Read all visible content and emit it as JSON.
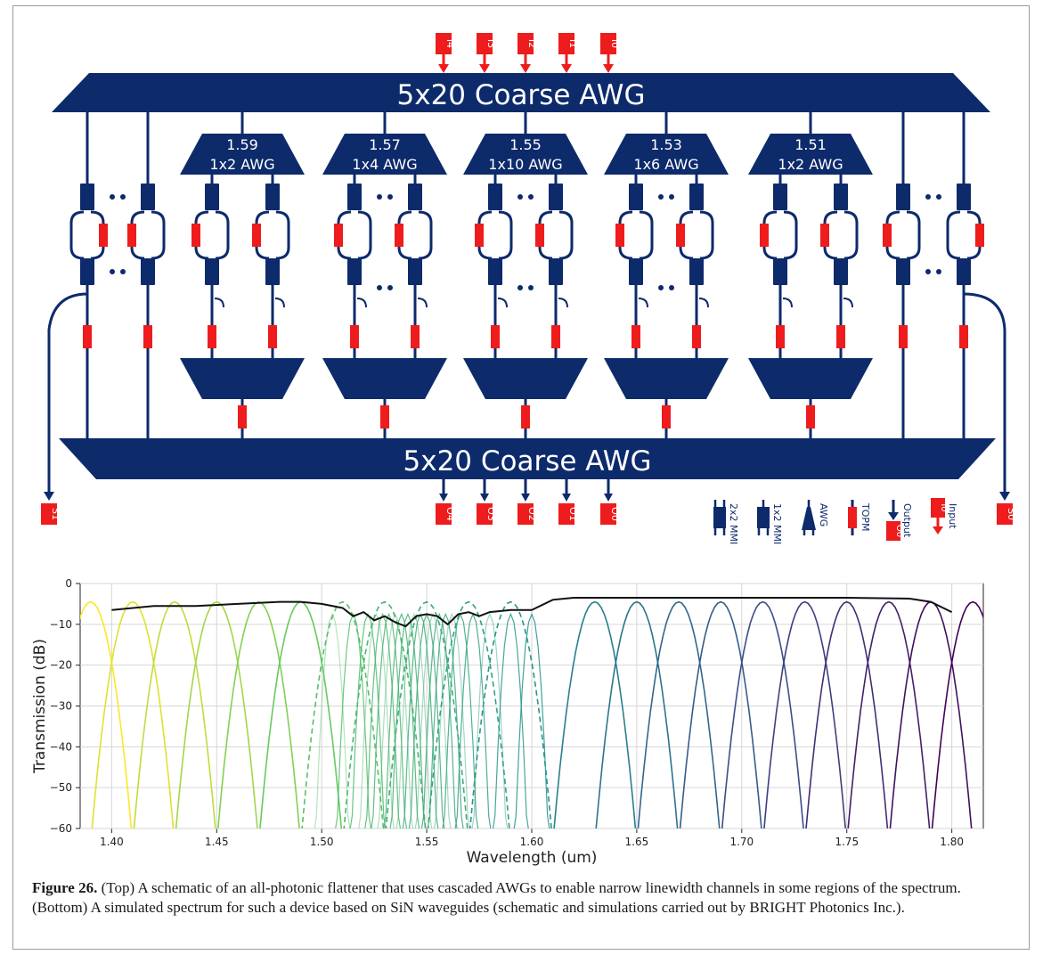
{
  "schematic": {
    "coarse_top_label": "5x20 Coarse AWG",
    "coarse_bottom_label": "5x20 Coarse AWG",
    "inputs": [
      "I4",
      "I3",
      "I2",
      "I1",
      "I0"
    ],
    "outputs": [
      "O4",
      "O3",
      "O2",
      "O1",
      "O0"
    ],
    "side_outputs": [
      "S1",
      "S0"
    ],
    "fine_awgs": [
      {
        "center": "1.59",
        "type": "1x2 AWG"
      },
      {
        "center": "1.57",
        "type": "1x4 AWG"
      },
      {
        "center": "1.55",
        "type": "1x10 AWG"
      },
      {
        "center": "1.53",
        "type": "1x6 AWG"
      },
      {
        "center": "1.51",
        "type": "1x2 AWG"
      }
    ],
    "legend": [
      {
        "icon": "mmi-2x2-icon",
        "label": "2x2 MMI"
      },
      {
        "icon": "mmi-1x2-icon",
        "label": "1x2 MMI"
      },
      {
        "icon": "awg-icon",
        "label": "AWG"
      },
      {
        "icon": "topm-icon",
        "label": "TOPM"
      },
      {
        "icon": "output-icon",
        "label": "Output",
        "tag": "O0"
      },
      {
        "icon": "input-icon",
        "label": "Input",
        "tag": "I0"
      }
    ],
    "colors": {
      "waveguide": "#0d2a6b",
      "port": "#ee1c1c",
      "heater": "#ee1c1c",
      "text": "#ffffff"
    }
  },
  "chart_data": {
    "type": "line",
    "xlabel": "Wavelength (um)",
    "ylabel": "Transmission (dB)",
    "xlim": [
      1.385,
      1.815
    ],
    "ylim": [
      -60,
      0
    ],
    "xticks": [
      "1.40",
      "1.45",
      "1.50",
      "1.55",
      "1.60",
      "1.65",
      "1.70",
      "1.75",
      "1.80"
    ],
    "yticks": [
      "0",
      "−10",
      "−20",
      "−30",
      "−40",
      "−50",
      "−60"
    ],
    "grid": true,
    "coarse_channels": {
      "centers": [
        1.39,
        1.41,
        1.43,
        1.45,
        1.47,
        1.49,
        1.63,
        1.65,
        1.67,
        1.69,
        1.71,
        1.73,
        1.75,
        1.77,
        1.79,
        1.81
      ],
      "peak_db": -4.5,
      "style": "solid"
    },
    "dashed_channels": {
      "centers": [
        1.51,
        1.53,
        1.55,
        1.57,
        1.59
      ],
      "peak_db": -4.5,
      "style": "dashed"
    },
    "fine_channels": {
      "centers": [
        1.505,
        1.515,
        1.522,
        1.526,
        1.529,
        1.532,
        1.535,
        1.538,
        1.541,
        1.544,
        1.547,
        1.55,
        1.553,
        1.556,
        1.559,
        1.562,
        1.566,
        1.572,
        1.58,
        1.59,
        1.6
      ],
      "peak_db": -7.5
    },
    "envelope": {
      "x": [
        1.4,
        1.42,
        1.44,
        1.46,
        1.48,
        1.49,
        1.5,
        1.51,
        1.515,
        1.52,
        1.525,
        1.53,
        1.535,
        1.54,
        1.545,
        1.55,
        1.555,
        1.56,
        1.565,
        1.57,
        1.575,
        1.58,
        1.59,
        1.6,
        1.61,
        1.62,
        1.65,
        1.7,
        1.75,
        1.78,
        1.79,
        1.8
      ],
      "y": [
        -6.5,
        -5.5,
        -5.5,
        -5,
        -4.5,
        -4.5,
        -5,
        -6,
        -8,
        -7,
        -9,
        -8,
        -9.5,
        -10.5,
        -8,
        -7.5,
        -8,
        -10,
        -7.5,
        -7,
        -8,
        -7,
        -6.5,
        -6.5,
        -4,
        -3.5,
        -3.5,
        -3.5,
        -3.5,
        -3.7,
        -4.5,
        -7
      ]
    }
  },
  "caption": {
    "label": "Figure 26.",
    "text": " (Top) A schematic of an all-photonic flattener that uses cascaded AWGs to enable narrow linewidth channels in some regions of the spectrum. (Bottom) A simulated spectrum for such a device based on SiN waveguides (schematic and simulations carried out by BRIGHT Photonics Inc.)."
  }
}
